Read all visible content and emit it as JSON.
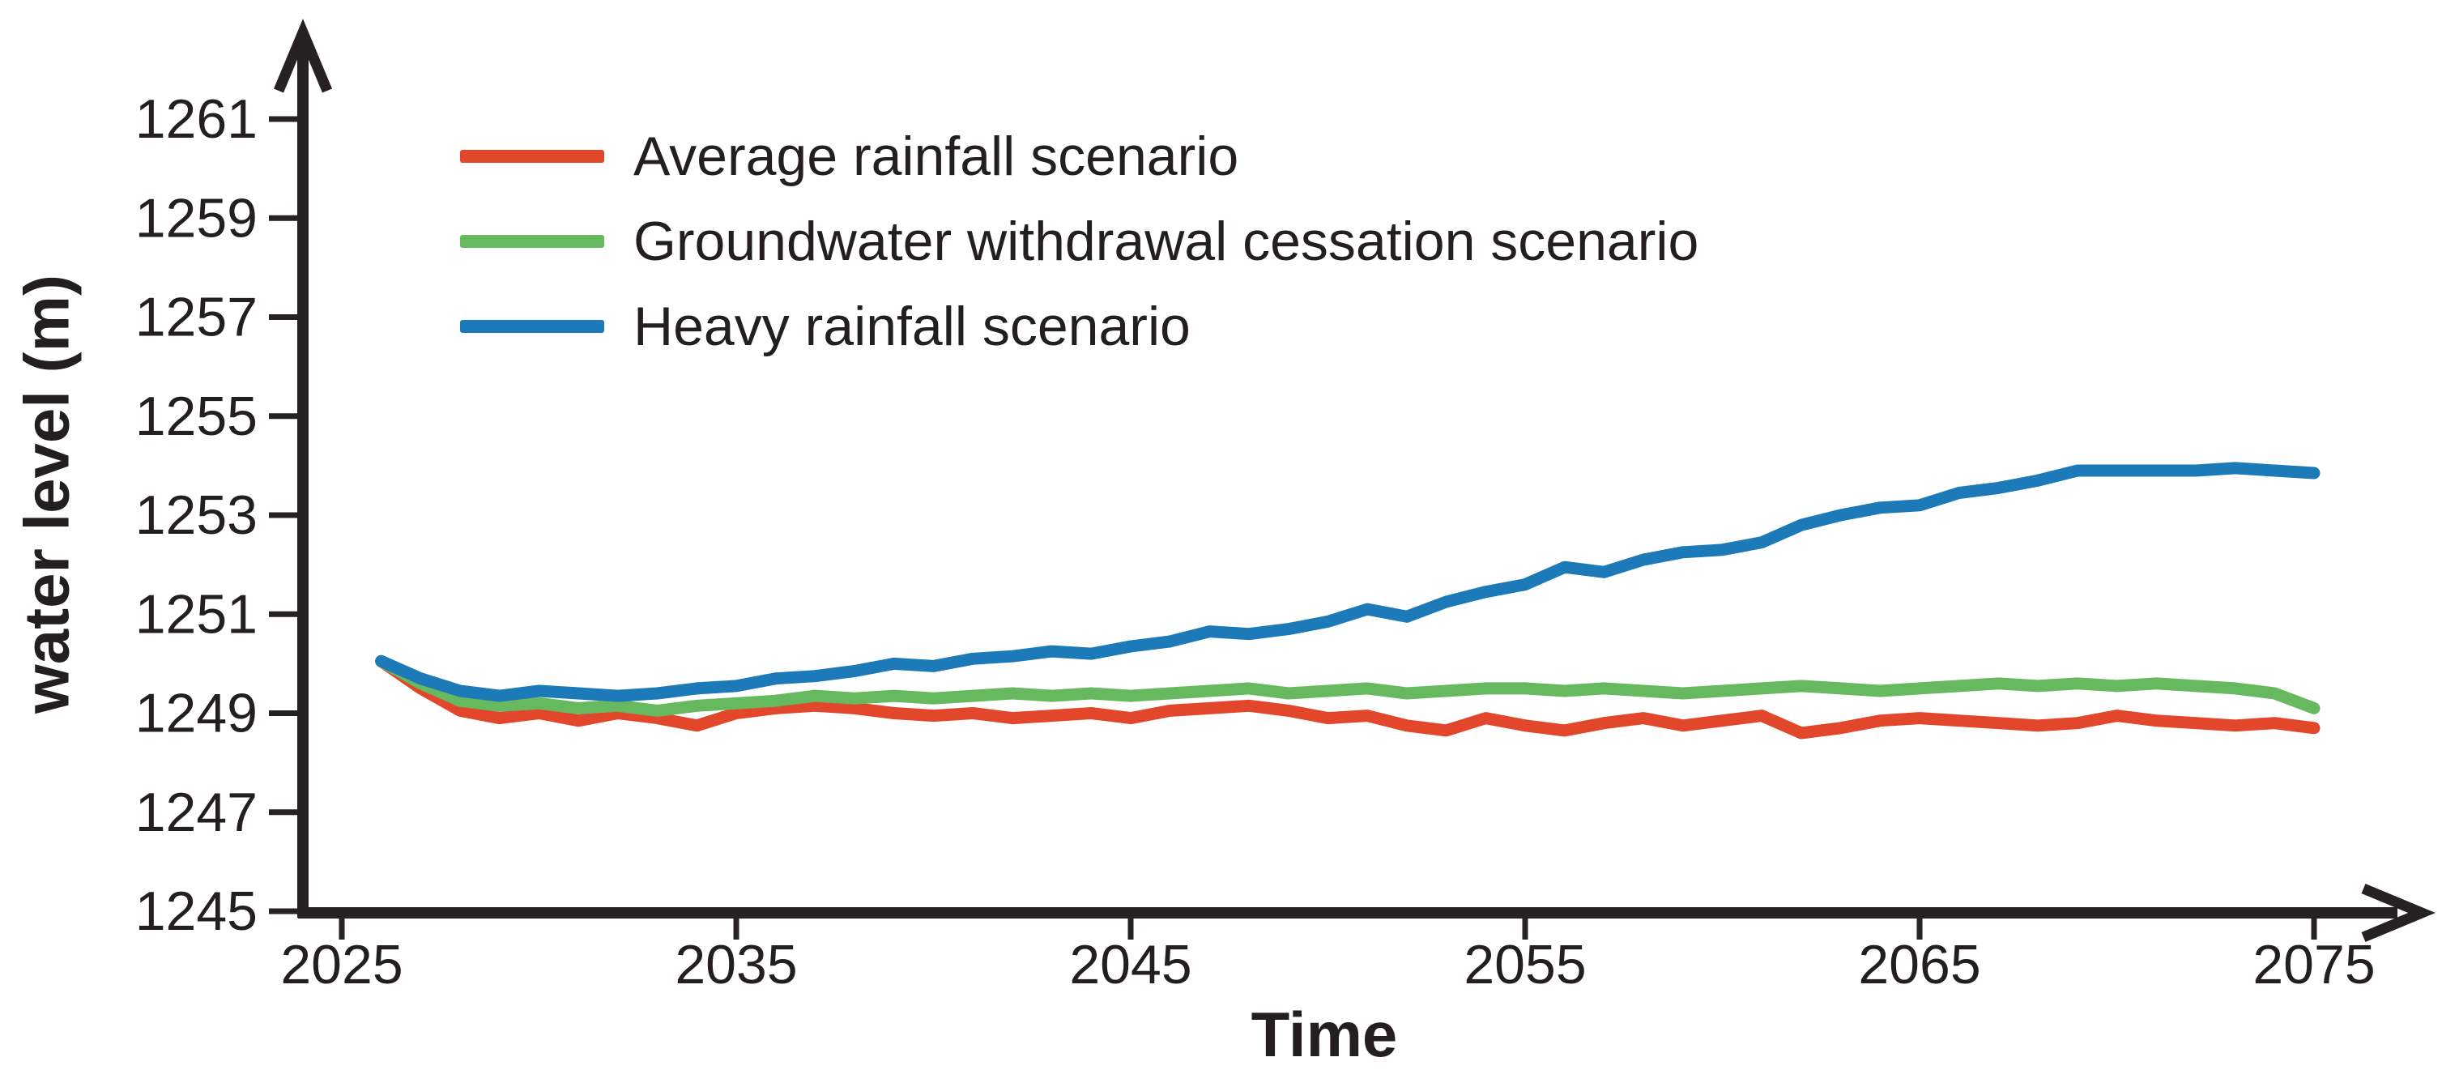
{
  "figure": {
    "background_color": "#ffffff",
    "text_color": "#231f20",
    "axis_color": "#262122"
  },
  "legend": {
    "items": [
      {
        "label": "Average rainfall scenario",
        "color": "#e2472b"
      },
      {
        "label": "Groundwater withdrawal cessation scenario",
        "color": "#67b95f"
      },
      {
        "label": "Heavy rainfall scenario",
        "color": "#1b7ab7"
      }
    ]
  },
  "chart_data": {
    "type": "line",
    "title": "",
    "xlabel": "Time",
    "ylabel": "water level (m)",
    "xlim": [
      2025,
      2077
    ],
    "ylim": [
      1245,
      1262
    ],
    "x_ticks": [
      2025,
      2035,
      2045,
      2055,
      2065,
      2075
    ],
    "y_ticks": [
      1245,
      1247,
      1249,
      1251,
      1253,
      1255,
      1257,
      1259,
      1261
    ],
    "grid": false,
    "legend_position": "top-left-inside",
    "x": [
      2026,
      2027,
      2028,
      2029,
      2030,
      2031,
      2032,
      2033,
      2034,
      2035,
      2036,
      2037,
      2038,
      2039,
      2040,
      2041,
      2042,
      2043,
      2044,
      2045,
      2046,
      2047,
      2048,
      2049,
      2050,
      2051,
      2052,
      2053,
      2054,
      2055,
      2056,
      2057,
      2058,
      2059,
      2060,
      2061,
      2062,
      2063,
      2064,
      2065,
      2066,
      2067,
      2068,
      2069,
      2070,
      2071,
      2072,
      2073,
      2074,
      2075
    ],
    "series": [
      {
        "name": "Average rainfall scenario",
        "color": "#e2472b",
        "values": [
          1250.05,
          1249.5,
          1249.05,
          1248.9,
          1249.0,
          1248.85,
          1249.0,
          1248.9,
          1248.75,
          1249.0,
          1249.1,
          1249.15,
          1249.1,
          1249.0,
          1248.95,
          1249.0,
          1248.9,
          1248.95,
          1249.0,
          1248.9,
          1249.05,
          1249.1,
          1249.15,
          1249.05,
          1248.9,
          1248.95,
          1248.75,
          1248.65,
          1248.9,
          1248.75,
          1248.65,
          1248.8,
          1248.9,
          1248.75,
          1248.85,
          1248.95,
          1248.6,
          1248.7,
          1248.85,
          1248.9,
          1248.85,
          1248.8,
          1248.75,
          1248.8,
          1248.95,
          1248.85,
          1248.8,
          1248.75,
          1248.8,
          1248.7
        ]
      },
      {
        "name": "Groundwater withdrawal cessation scenario",
        "color": "#67b95f",
        "values": [
          1250.05,
          1249.6,
          1249.25,
          1249.15,
          1249.2,
          1249.1,
          1249.15,
          1249.05,
          1249.15,
          1249.2,
          1249.25,
          1249.35,
          1249.3,
          1249.35,
          1249.3,
          1249.35,
          1249.4,
          1249.35,
          1249.4,
          1249.35,
          1249.4,
          1249.45,
          1249.5,
          1249.4,
          1249.45,
          1249.5,
          1249.4,
          1249.45,
          1249.5,
          1249.5,
          1249.45,
          1249.5,
          1249.45,
          1249.4,
          1249.45,
          1249.5,
          1249.55,
          1249.5,
          1249.45,
          1249.5,
          1249.55,
          1249.6,
          1249.55,
          1249.6,
          1249.55,
          1249.6,
          1249.55,
          1249.5,
          1249.4,
          1249.1
        ]
      },
      {
        "name": "Heavy rainfall scenario",
        "color": "#1b7ab7",
        "values": [
          1250.05,
          1249.7,
          1249.45,
          1249.35,
          1249.45,
          1249.4,
          1249.35,
          1249.4,
          1249.5,
          1249.55,
          1249.7,
          1249.75,
          1249.85,
          1250.0,
          1249.95,
          1250.1,
          1250.15,
          1250.25,
          1250.2,
          1250.35,
          1250.45,
          1250.65,
          1250.6,
          1250.7,
          1250.85,
          1251.1,
          1250.95,
          1251.25,
          1251.45,
          1251.6,
          1251.95,
          1251.85,
          1252.1,
          1252.25,
          1252.3,
          1252.45,
          1252.8,
          1253.0,
          1253.15,
          1253.2,
          1253.45,
          1253.55,
          1253.7,
          1253.9,
          1253.9,
          1253.9,
          1253.9,
          1253.95,
          1253.9,
          1253.85
        ]
      }
    ]
  }
}
